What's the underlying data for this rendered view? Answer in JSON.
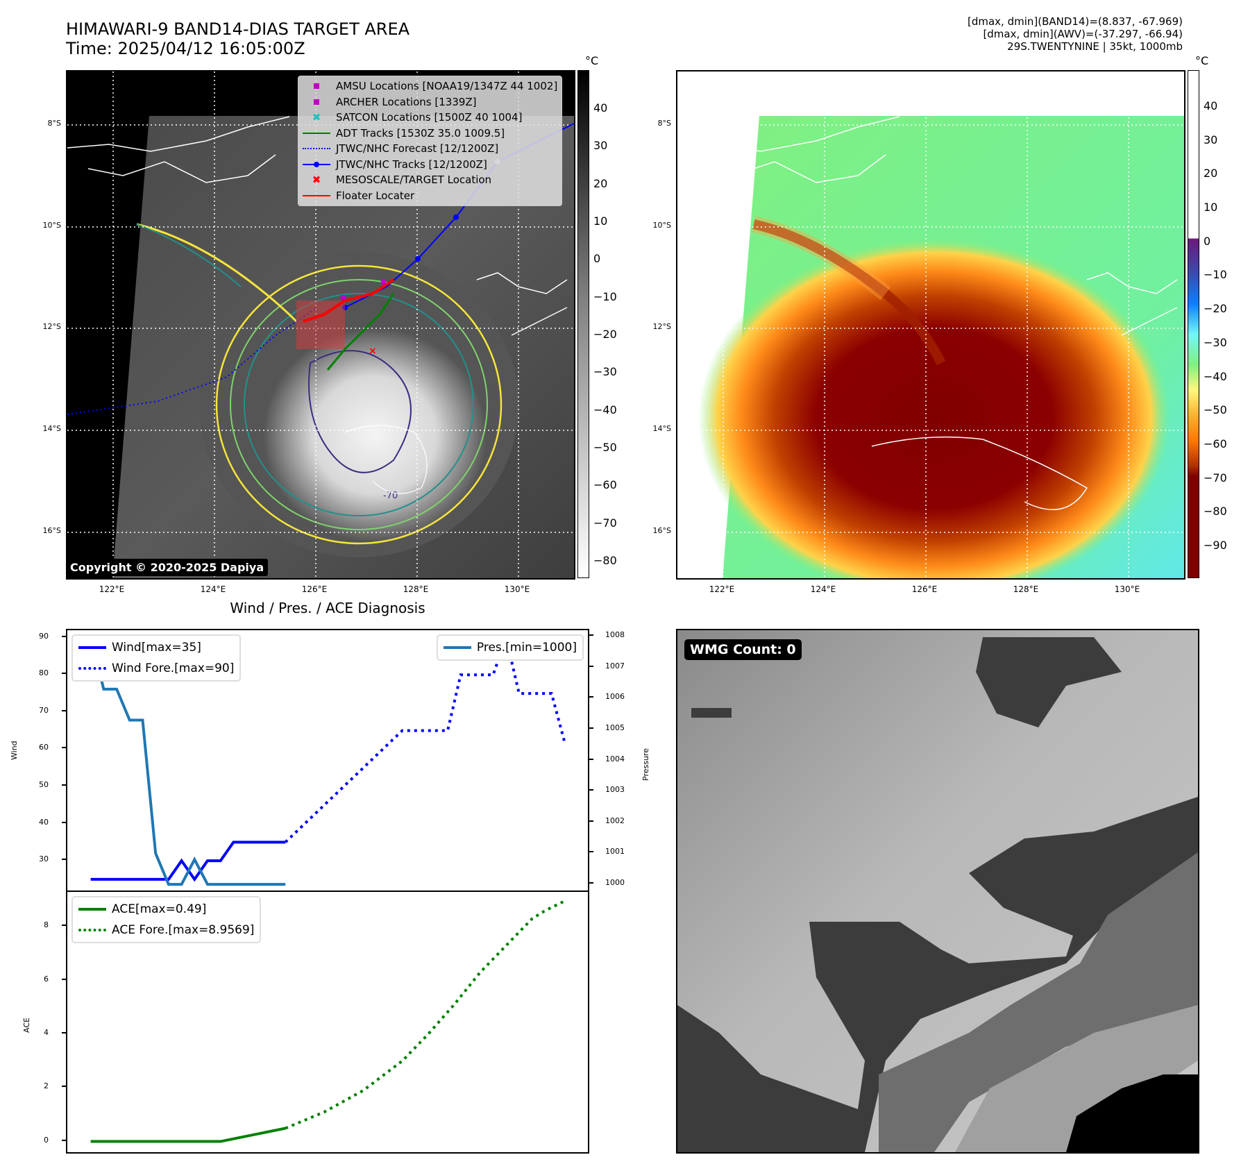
{
  "header": {
    "title": "HIMAWARI-9 BAND14-DIAS TARGET AREA",
    "time": "Time: 2025/04/12 16:05:00Z",
    "info_lines": [
      "[dmax, dmin](BAND14)=(8.837, -67.969)",
      "[dmax, dmin](AWV)=(-37.297, -66.94)",
      "29S.TWENTYNINE | 35kt, 1000mb"
    ]
  },
  "map": {
    "lat_ticks": [
      "8°S",
      "10°S",
      "12°S",
      "14°S",
      "16°S"
    ],
    "lon_ticks": [
      "122°E",
      "124°E",
      "126°E",
      "128°E",
      "130°E"
    ],
    "legend": [
      {
        "label": "AMSU Locations [NOAA19/1347Z 44 1002]",
        "symbol": "square",
        "color": "#c000c0"
      },
      {
        "label": "ARCHER Locations [1339Z]",
        "symbol": "square",
        "color": "#c000c0"
      },
      {
        "label": "SATCON Locations [1500Z 40 1004]",
        "symbol": "x",
        "color": "#20c0c0"
      },
      {
        "label": "ADT Tracks [1530Z 35.0 1009.5]",
        "symbol": "line",
        "color": "#008000"
      },
      {
        "label": "JTWC/NHC Forecast [12/1200Z]",
        "symbol": "dotted",
        "color": "#0000ff"
      },
      {
        "label": "JTWC/NHC Tracks [12/1200Z]",
        "symbol": "line-dot",
        "color": "#0000ff"
      },
      {
        "label": "MESOSCALE/TARGET Location",
        "symbol": "x",
        "color": "#ff0000"
      },
      {
        "label": "Floater Locater",
        "symbol": "line",
        "color": "#ff0000"
      }
    ],
    "copyright": "Copyright © 2020-2025 Dapiya",
    "colorbar_left": {
      "unit": "°C",
      "ticks": [
        "40",
        "30",
        "20",
        "10",
        "0",
        "−10",
        "−20",
        "−30",
        "−40",
        "−50",
        "−60",
        "−70",
        "−80"
      ]
    },
    "colorbar_right": {
      "unit": "°C",
      "ticks": [
        "40",
        "30",
        "20",
        "10",
        "0",
        "−10",
        "−20",
        "−30",
        "−40",
        "−50",
        "−60",
        "−70",
        "−80",
        "−90"
      ]
    },
    "contour_label": "-70"
  },
  "wmg": {
    "badge": "WMG Count: 0"
  },
  "chart_data": [
    {
      "type": "line",
      "title": "Wind / Pres. / ACE Diagnosis",
      "ylabel": "Wind",
      "y2label": "Pressure",
      "ylim": [
        22,
        92
      ],
      "y2lim": [
        999.8,
        1008.2
      ],
      "yticks": [
        "90",
        "80",
        "70",
        "60",
        "50",
        "40",
        "30"
      ],
      "y2ticks": [
        "1008",
        "1007",
        "1006",
        "1005",
        "1004",
        "1003",
        "1002",
        "1001",
        "1000"
      ],
      "x": [
        0,
        1,
        2,
        3,
        4,
        5,
        6,
        7,
        8,
        9,
        10,
        11,
        12,
        13,
        14,
        15,
        16,
        17,
        18,
        19,
        20,
        21,
        22,
        23,
        24,
        25,
        26,
        27,
        28,
        29,
        30,
        31,
        32,
        33,
        34,
        35
      ],
      "series": [
        {
          "name": "Wind[max=35]",
          "axis": "left",
          "style": "solid",
          "color": "#0000ff",
          "x": [
            0,
            1,
            2,
            3,
            4,
            5,
            6,
            7,
            8,
            9,
            10,
            11,
            12,
            13,
            14,
            15
          ],
          "values": [
            25,
            25,
            25,
            25,
            25,
            25,
            25,
            30,
            25,
            30,
            30,
            35,
            35,
            35,
            35,
            35
          ]
        },
        {
          "name": "Wind Fore.[max=90]",
          "axis": "left",
          "style": "dotted",
          "color": "#0000ff",
          "x": [
            15,
            16.5,
            18,
            19.5,
            21,
            22.5,
            24,
            25,
            26,
            26.5,
            27.5,
            28.5,
            29,
            30.5,
            31,
            32,
            33,
            34,
            34.5,
            35.5,
            36.5
          ],
          "values": [
            35,
            40,
            45,
            50,
            55,
            60,
            65,
            65,
            65,
            65,
            65,
            80,
            80,
            80,
            80,
            90,
            75,
            75,
            75,
            75,
            62
          ]
        },
        {
          "name": "Pres.[min=1000]",
          "axis": "right",
          "style": "solid",
          "color": "#1f77b4",
          "x": [
            0,
            1,
            2,
            3,
            4,
            5,
            6,
            7,
            8,
            9,
            10,
            11,
            12,
            13,
            14,
            15
          ],
          "values": [
            1008,
            1006.3,
            1006.3,
            1005.3,
            1005.3,
            1001,
            1000,
            1000,
            1000.8,
            1000,
            1000,
            1000,
            1000,
            1000,
            1000,
            1000
          ]
        }
      ]
    },
    {
      "type": "line",
      "ylabel": "ACE",
      "ylim": [
        -0.4,
        9.3
      ],
      "yticks": [
        "8",
        "6",
        "4",
        "2",
        "0"
      ],
      "series": [
        {
          "name": "ACE[max=0.49]",
          "style": "solid",
          "color": "#008000",
          "x": [
            0,
            10,
            15
          ],
          "values": [
            0,
            0,
            0.49
          ]
        },
        {
          "name": "ACE Fore.[max=8.9569]",
          "style": "dotted",
          "color": "#008000",
          "x": [
            15,
            18,
            21,
            24,
            26,
            28,
            30,
            32,
            33,
            34,
            35,
            36.5
          ],
          "values": [
            0.49,
            1.1,
            1.9,
            3.0,
            4.0,
            5.1,
            6.3,
            7.3,
            7.8,
            8.3,
            8.6,
            8.9569
          ]
        }
      ]
    }
  ]
}
